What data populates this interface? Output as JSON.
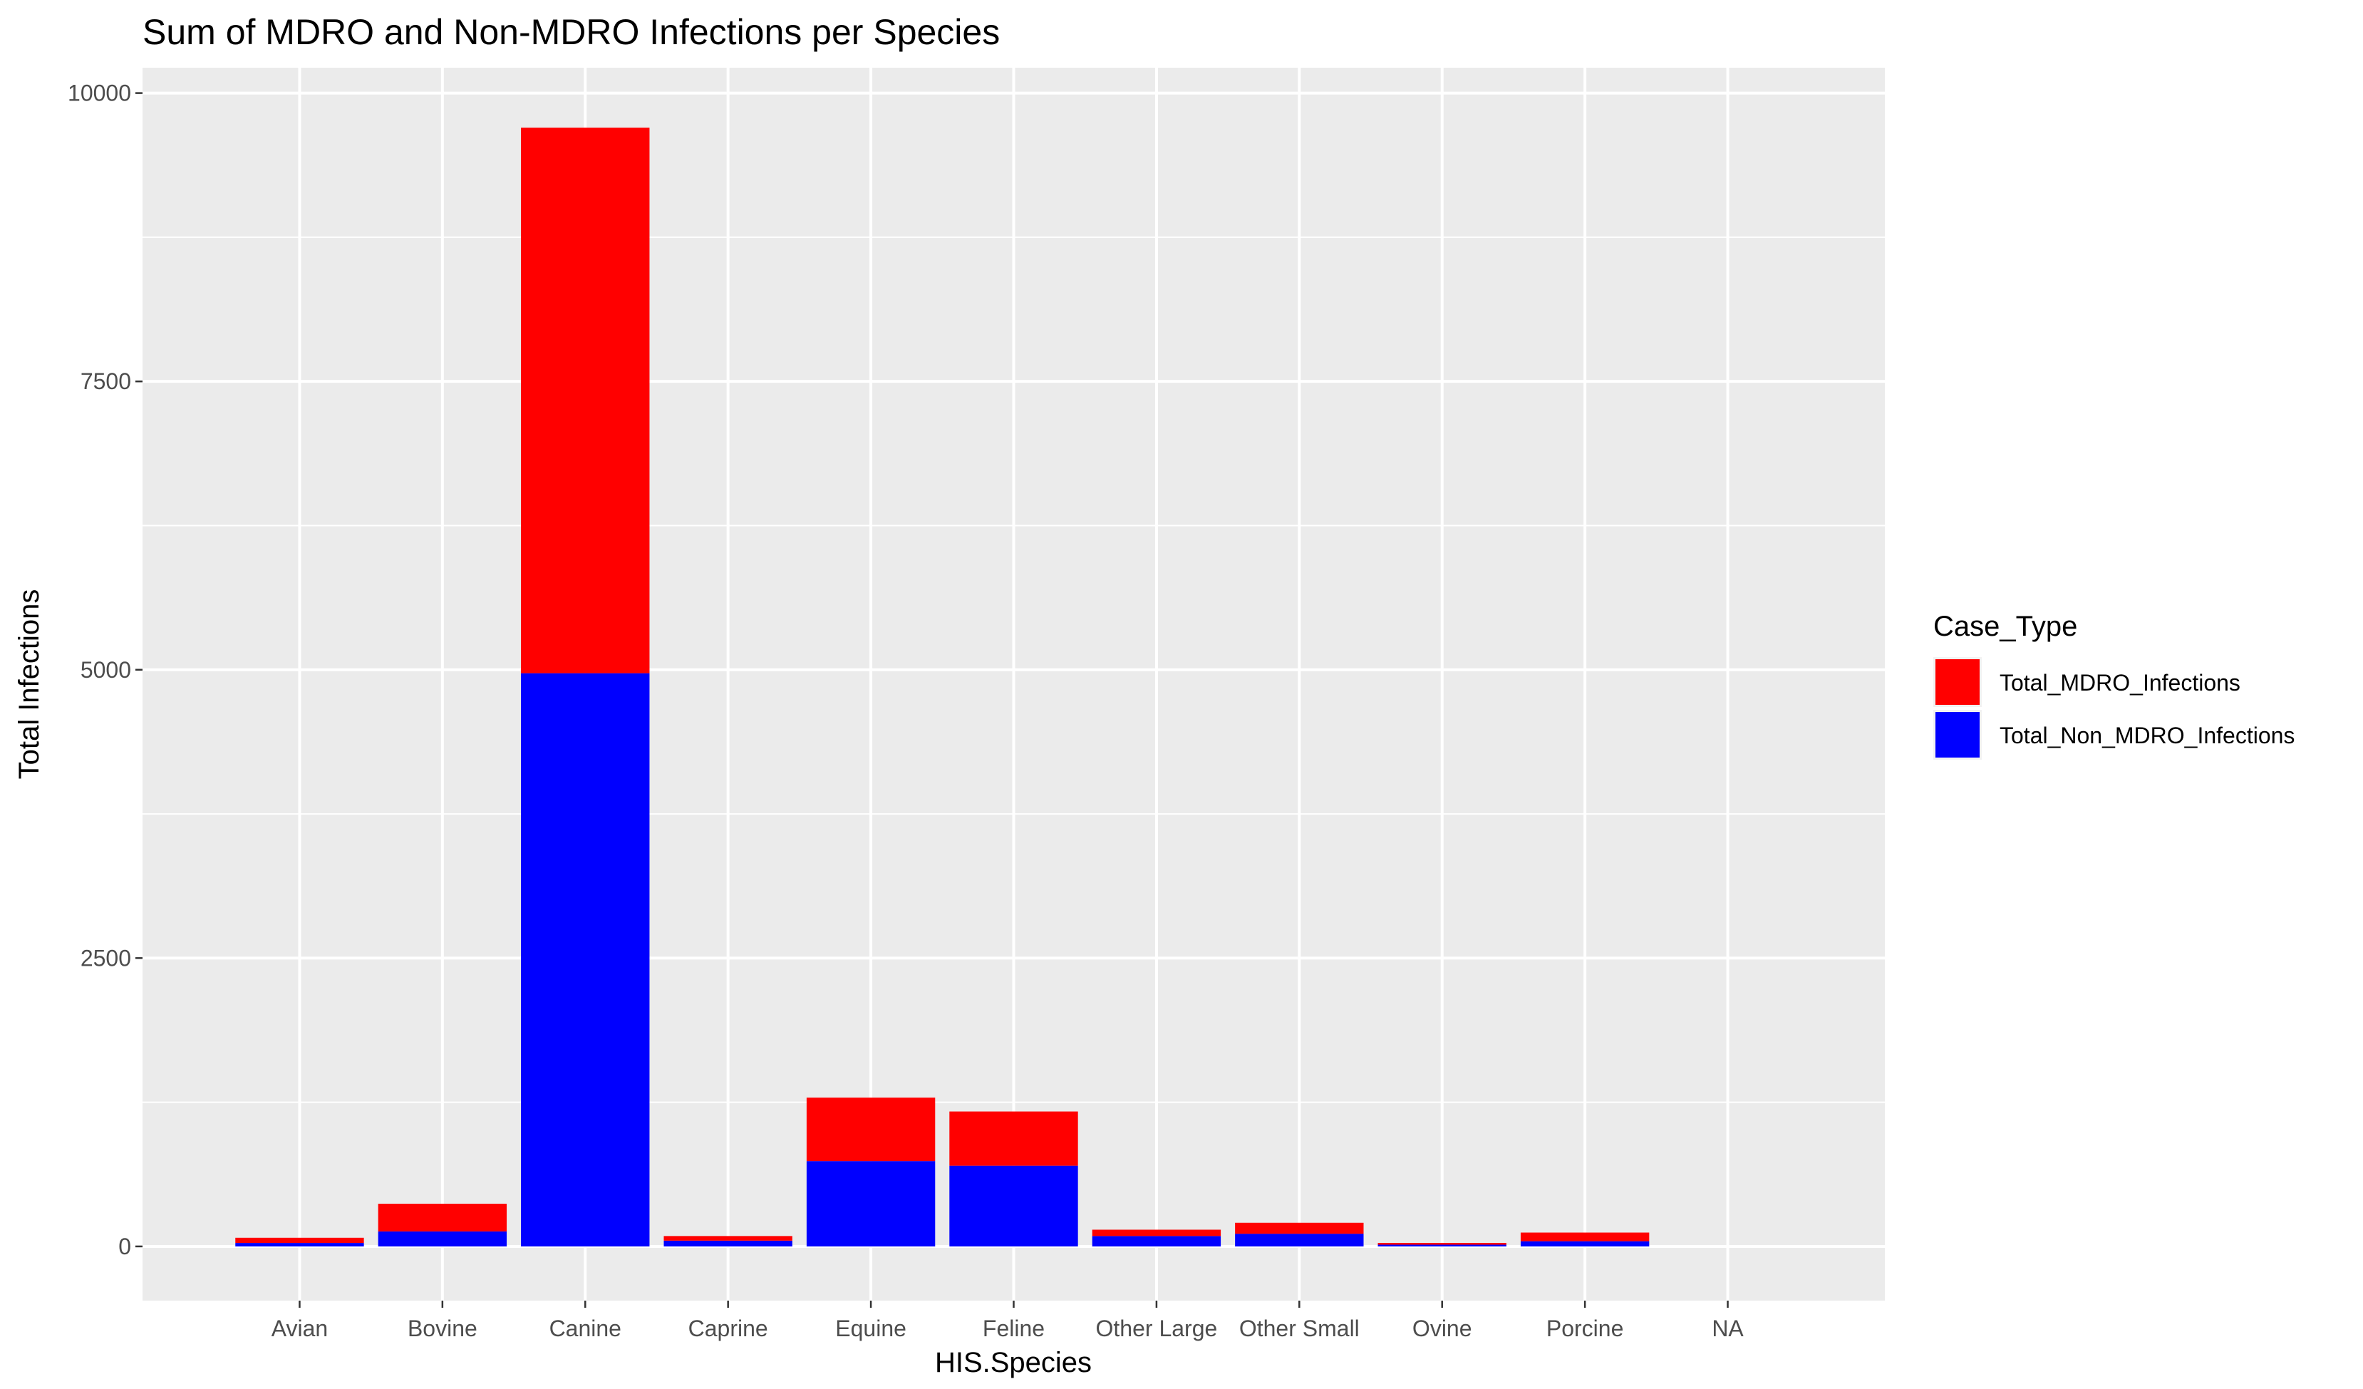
{
  "chart_data": {
    "type": "bar",
    "stacked": true,
    "title": "Sum of MDRO and Non-MDRO Infections per Species",
    "xlabel": "HIS.Species",
    "ylabel": "Total Infections",
    "categories": [
      "Avian",
      "Bovine",
      "Canine",
      "Caprine",
      "Equine",
      "Feline",
      "Other Large",
      "Other Small",
      "Ovine",
      "Porcine",
      "NA"
    ],
    "series": [
      {
        "name": "Total_Non_MDRO_Infections",
        "color": "#0000ff",
        "values": [
          30,
          130,
          4970,
          50,
          740,
          700,
          90,
          110,
          15,
          45,
          0
        ]
      },
      {
        "name": "Total_MDRO_Infections",
        "color": "#ff0000",
        "values": [
          45,
          240,
          4730,
          40,
          550,
          470,
          55,
          95,
          15,
          75,
          0
        ]
      }
    ],
    "ylim": [
      -470,
      10220
    ],
    "yticks": [
      0,
      2500,
      5000,
      7500,
      10000
    ],
    "ytick_labels": [
      "0",
      "2500",
      "5000",
      "7500",
      "10000"
    ],
    "grid": true,
    "legend": {
      "title": "Case_Type",
      "placement": "right",
      "entries": [
        "Total_MDRO_Infections",
        "Total_Non_MDRO_Infections"
      ]
    }
  },
  "colors": {
    "panel_background": "#ebebeb",
    "grid_line": "#ffffff",
    "tick_label": "#4d4d4d"
  }
}
